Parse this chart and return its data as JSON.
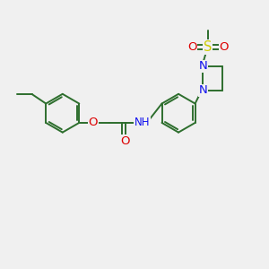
{
  "background_color": "#f0f0f0",
  "bond_color": "#2d6e2d",
  "bond_width": 1.4,
  "N_color": "#1010ee",
  "O_color": "#dd0000",
  "S_color": "#cccc00",
  "font_size": 8.5,
  "fig_width": 3.0,
  "fig_height": 3.0,
  "dpi": 100,
  "xlim": [
    0,
    10
  ],
  "ylim": [
    0,
    10
  ]
}
